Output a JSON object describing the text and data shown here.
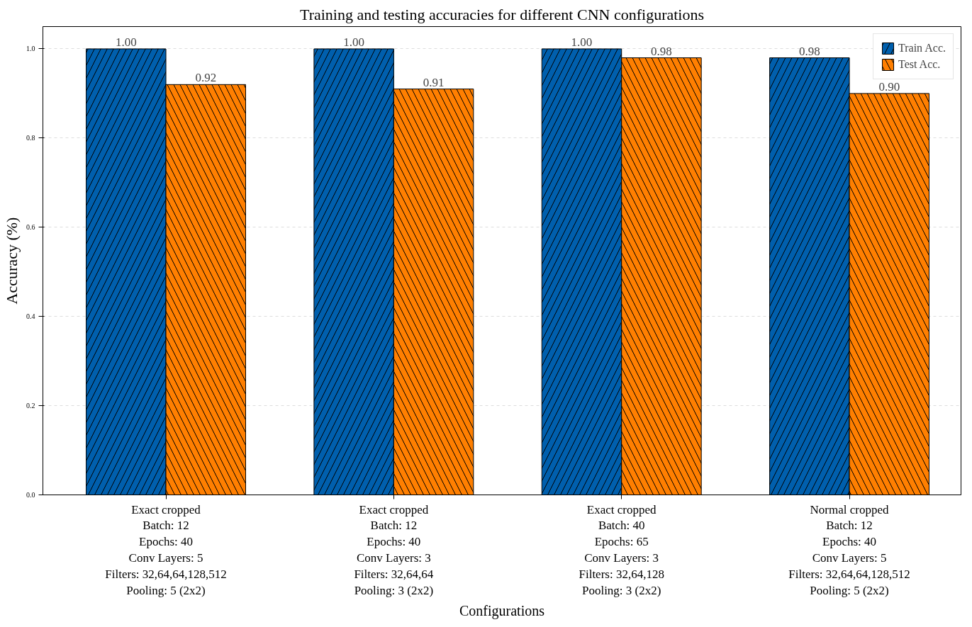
{
  "chart_data": {
    "type": "bar",
    "title": "Training and testing accuracies for different CNN configurations",
    "xlabel": "Configurations",
    "ylabel": "Accuracy (%)",
    "categories": [
      "Exact cropped\nBatch: 12\nEpochs: 40\nConv Layers: 5\nFilters: 32,64,64,128,512\nPooling: 5 (2x2)",
      "Exact cropped\nBatch: 12\nEpochs: 40\nConv Layers: 3\nFilters: 32,64,64\nPooling: 3 (2x2)",
      "Exact cropped\nBatch: 40\nEpochs: 65\nConv Layers: 3\nFilters: 32,64,128\nPooling: 3 (2x2)",
      "Normal cropped\nBatch: 12\nEpochs: 40\nConv Layers: 5\nFilters: 32,64,64,128,512\nPooling: 5 (2x2)"
    ],
    "series": [
      {
        "name": "Train Acc.",
        "color": "#005fad",
        "values": [
          1.0,
          1.0,
          1.0,
          0.98
        ],
        "value_labels": [
          "1.00",
          "1.00",
          "1.00",
          "0.98"
        ]
      },
      {
        "name": "Test Acc.",
        "color": "#ff7f00",
        "values": [
          0.92,
          0.91,
          0.98,
          0.9
        ],
        "value_labels": [
          "0.92",
          "0.91",
          "0.98",
          "0.90"
        ]
      }
    ],
    "ylim": [
      0,
      1.05
    ],
    "yticks": [
      {
        "value": 0,
        "label": "0.0"
      },
      0.2,
      0.4,
      0.6,
      0.8,
      {
        "value": 1,
        "label": "1.0"
      }
    ],
    "grid": "y",
    "legend": "top right"
  }
}
